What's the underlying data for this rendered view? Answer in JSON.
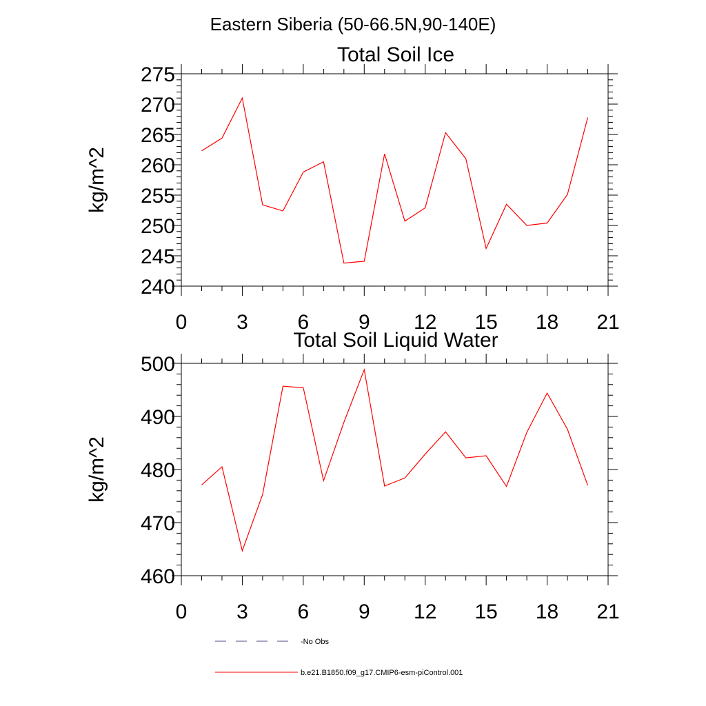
{
  "figure_title": "Eastern Siberia (50-66.5N,90-140E)",
  "chart_data": [
    {
      "type": "line",
      "title": "Total Soil Ice",
      "xlabel": "",
      "ylabel": "kg/m^2",
      "xlim": [
        0,
        21
      ],
      "ylim": [
        240,
        275
      ],
      "xticks": [
        0,
        3,
        6,
        9,
        12,
        15,
        18,
        21
      ],
      "yticks": [
        240,
        245,
        250,
        255,
        260,
        265,
        270,
        275
      ],
      "x": [
        1,
        2,
        3,
        4,
        5,
        6,
        7,
        8,
        9,
        10,
        11,
        12,
        13,
        14,
        15,
        16,
        17,
        18,
        19,
        20
      ],
      "series": [
        {
          "name": "b.e21.B1850.f09_g17.CMIP6-esm-piControl.001",
          "color": "#ff0000",
          "values": [
            262.3,
            264.4,
            271.0,
            253.4,
            252.4,
            258.8,
            260.5,
            243.8,
            244.1,
            261.8,
            250.7,
            252.9,
            265.3,
            261.0,
            246.2,
            253.5,
            250.0,
            250.4,
            255.1,
            267.8
          ]
        }
      ]
    },
    {
      "type": "line",
      "title": "Total Soil Liquid Water",
      "xlabel": "",
      "ylabel": "kg/m^2",
      "xlim": [
        0,
        21
      ],
      "ylim": [
        460,
        500
      ],
      "xticks": [
        0,
        3,
        6,
        9,
        12,
        15,
        18,
        21
      ],
      "yticks": [
        460,
        470,
        480,
        490,
        500
      ],
      "x": [
        1,
        2,
        3,
        4,
        5,
        6,
        7,
        8,
        9,
        10,
        11,
        12,
        13,
        14,
        15,
        16,
        17,
        18,
        19,
        20
      ],
      "series": [
        {
          "name": "b.e21.B1850.f09_g17.CMIP6-esm-piControl.001",
          "color": "#ff0000",
          "values": [
            477.1,
            480.5,
            464.7,
            475.3,
            495.7,
            495.4,
            477.9,
            488.9,
            498.8,
            476.9,
            478.4,
            482.9,
            487.1,
            482.2,
            482.6,
            476.8,
            487.0,
            494.4,
            487.6,
            477.0
          ]
        }
      ]
    }
  ],
  "legend": [
    {
      "label": "No Obs",
      "style": "dashed",
      "color": "#4a4a8a"
    },
    {
      "label": "b.e21.B1850.f09_g17.CMIP6-esm-piControl.001",
      "style": "solid",
      "color": "#ff0000"
    }
  ]
}
